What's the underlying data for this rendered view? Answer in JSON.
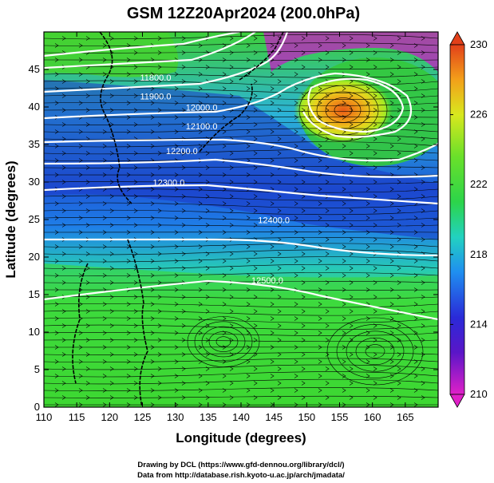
{
  "title": "GSM 12Z20Apr2024 (200.0hPa)",
  "credits": [
    "Drawing by DCL (https://www.gfd-dennou.org/library/dcl/)",
    "Data from http://database.rish.kyoto-u.ac.jp/arch/jmadata/"
  ],
  "chart_data": {
    "type": "heatmap",
    "title": "GSM 12Z20Apr2024 (200.0hPa)",
    "xlabel": "Longitude (degrees)",
    "ylabel": "Latitude  (degrees)",
    "xlim": [
      110,
      170
    ],
    "ylim": [
      0,
      50
    ],
    "xticks": [
      110,
      115,
      120,
      125,
      130,
      135,
      140,
      145,
      150,
      155,
      160,
      165
    ],
    "yticks": [
      0,
      5,
      10,
      15,
      20,
      25,
      30,
      35,
      40,
      45
    ],
    "grid": false,
    "colorbar": {
      "range": [
        210,
        230
      ],
      "ticks": [
        210,
        214,
        218,
        222,
        226,
        230
      ],
      "colors": [
        "#d21bd2",
        "#3a13c8",
        "#1a9df0",
        "#20d48a",
        "#2cd22a",
        "#c9ee1f",
        "#f2b41a",
        "#e03a1a"
      ]
    },
    "contours": {
      "color": "#ffffff",
      "labels": [
        {
          "text": "11800.0",
          "lon": 127,
          "lat": 43.5
        },
        {
          "text": "11900.0",
          "lon": 127,
          "lat": 41.0
        },
        {
          "text": "12000.0",
          "lon": 134,
          "lat": 39.5
        },
        {
          "text": "12100.0",
          "lon": 134,
          "lat": 37.0
        },
        {
          "text": "12200.0",
          "lon": 131,
          "lat": 33.7
        },
        {
          "text": "12300.0",
          "lon": 129,
          "lat": 29.5
        },
        {
          "text": "12400.0",
          "lon": 145,
          "lat": 24.5
        },
        {
          "text": "12500.0",
          "lon": 144,
          "lat": 16.5
        }
      ]
    },
    "overlays": [
      "streamlines",
      "coastlines"
    ]
  }
}
